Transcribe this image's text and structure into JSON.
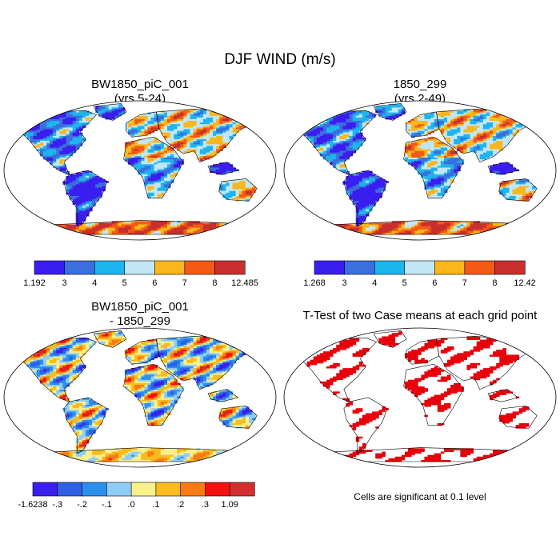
{
  "title": "DJF WIND (m/s)",
  "colors": {
    "ocean": "#ffffff",
    "coast": "#000000",
    "significant": "#e8000b"
  },
  "panels": [
    {
      "id": "case1",
      "title_line1": "BW1850_piC_001",
      "title_line2": "(yrs 5-24)",
      "colors": [
        "#3a1ef0",
        "#3b6fdd",
        "#1eb4ee",
        "#c3e6f6",
        "#f9b71c",
        "#f25a16",
        "#c7302d"
      ],
      "labels": [
        "1.192",
        "3",
        "4",
        "5",
        "6",
        "7",
        "8",
        "12.485"
      ]
    },
    {
      "id": "case2",
      "title_line1": "1850_299",
      "title_line2": "(yrs 2-49)",
      "colors": [
        "#3a1ef0",
        "#3b6fdd",
        "#1eb4ee",
        "#c3e6f6",
        "#f9b71c",
        "#f25a16",
        "#c7302d"
      ],
      "labels": [
        "1.268",
        "3",
        "4",
        "5",
        "6",
        "7",
        "8",
        "12.42"
      ]
    },
    {
      "id": "difference",
      "title_line1": "BW1850_piC_001",
      "title_line2": "- 1850_299",
      "colors": [
        "#3a1ef0",
        "#2f5fe6",
        "#2b8fee",
        "#8fcdf6",
        "#f9f08b",
        "#f9bb1e",
        "#f97a12",
        "#f51010",
        "#d1302f"
      ],
      "labels": [
        "-1.6238",
        "-.3",
        "-.2",
        "-.1",
        ".0",
        ".1",
        ".2",
        ".3",
        "1.09"
      ]
    },
    {
      "id": "ttest",
      "title_line1": "T-Test of two Case means at each grid point",
      "title_line2": "",
      "note": "Cells are significant at 0.1 level"
    }
  ]
}
